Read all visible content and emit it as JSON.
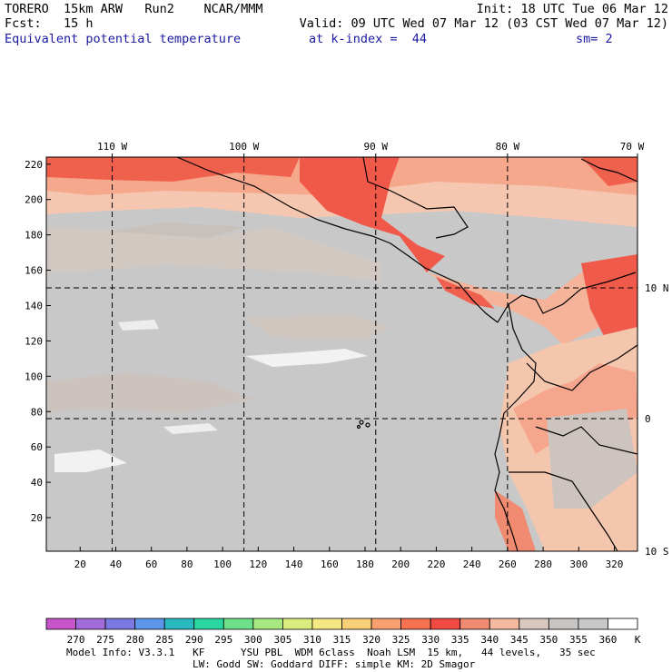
{
  "header": {
    "line1_left": "TORERO  15km ARW   Run2    NCAR/MMM",
    "line1_right": "Init: 18 UTC Tue 06 Mar 12",
    "line2_left": "Fcst:   15 h",
    "line2_right": "Valid: 09 UTC Wed 07 Mar 12 (03 CST Wed 07 Mar 12)",
    "field_name": "Equivalent potential temperature",
    "level": "at k-index =  44",
    "smooth": "sm= 2"
  },
  "map": {
    "lon_labels": [
      "110 W",
      "100 W",
      "90 W",
      "80 W",
      "70 W"
    ],
    "lat_labels": [
      "10 N",
      "0",
      "10 S"
    ],
    "y_ticks": [
      "220",
      "200",
      "180",
      "160",
      "140",
      "120",
      "100",
      "80",
      "60",
      "40",
      "20"
    ],
    "x_ticks": [
      "20",
      "40",
      "60",
      "80",
      "100",
      "120",
      "140",
      "160",
      "180",
      "200",
      "220",
      "240",
      "260",
      "280",
      "300",
      "320"
    ],
    "grid_x_values": [
      38,
      112,
      186,
      260
    ],
    "grid_y_values": [
      76,
      150
    ],
    "x_range": [
      1,
      333
    ],
    "y_range": [
      1,
      224
    ]
  },
  "colorbar": {
    "colors": [
      "#c855c8",
      "#a36bd9",
      "#7b78e4",
      "#5b96ea",
      "#27b8c0",
      "#2bd7a0",
      "#6fe08a",
      "#a8e880",
      "#dceb7d",
      "#f5e882",
      "#f9cf78",
      "#f9a070",
      "#f5714f",
      "#f04a42",
      "#f08a70",
      "#f5b9a0",
      "#d8c8c0",
      "#c9c5c3",
      "#c8c8c8",
      "#ffffff"
    ],
    "labels": [
      "270",
      "275",
      "280",
      "285",
      "290",
      "295",
      "300",
      "305",
      "310",
      "315",
      "320",
      "325",
      "330",
      "335",
      "340",
      "345",
      "350",
      "355",
      "360"
    ],
    "unit": "K"
  },
  "footer": {
    "line1": "Model Info: V3.3.1   KF      YSU PBL  WDM 6class  Noah LSM  15 km,   44 levels,   35 sec",
    "line2": "LW: Godd SW: Goddard DIFF: simple KM: 2D Smagor"
  }
}
